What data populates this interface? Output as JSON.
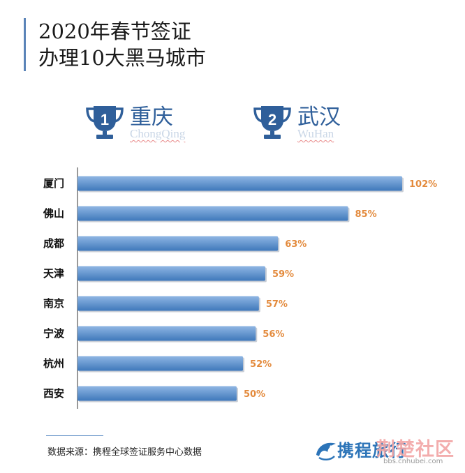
{
  "header": {
    "title_line1": "2020年春节签证",
    "title_line2": "办理10大黑马城市"
  },
  "top_cities": [
    {
      "rank": "1",
      "name_cn": "重庆",
      "name_en": "ChongQing"
    },
    {
      "rank": "2",
      "name_cn": "武汉",
      "name_en": "WuHan"
    }
  ],
  "chart_data": {
    "type": "bar",
    "orientation": "horizontal",
    "categories": [
      "厦门",
      "佛山",
      "成都",
      "天津",
      "南京",
      "宁波",
      "杭州",
      "西安"
    ],
    "values": [
      102,
      85,
      63,
      59,
      57,
      56,
      52,
      50
    ],
    "value_labels": [
      "102%",
      "85%",
      "63%",
      "59%",
      "57%",
      "56%",
      "52%",
      "50%"
    ],
    "title": "",
    "xlabel": "",
    "ylabel": "",
    "xlim": [
      0,
      102
    ],
    "grid": false,
    "legend": "none",
    "colors": {
      "bar_top": "#8fb6e3",
      "bar_bottom": "#3f78bb",
      "label": "#e38a3c",
      "axis": "#333333"
    }
  },
  "footer": {
    "source": "数据来源：携程全球签证服务中心数据",
    "brand": "携程旅行",
    "watermark": "荆楚社区",
    "watermark_url": "bbs.cnhubei.com"
  }
}
